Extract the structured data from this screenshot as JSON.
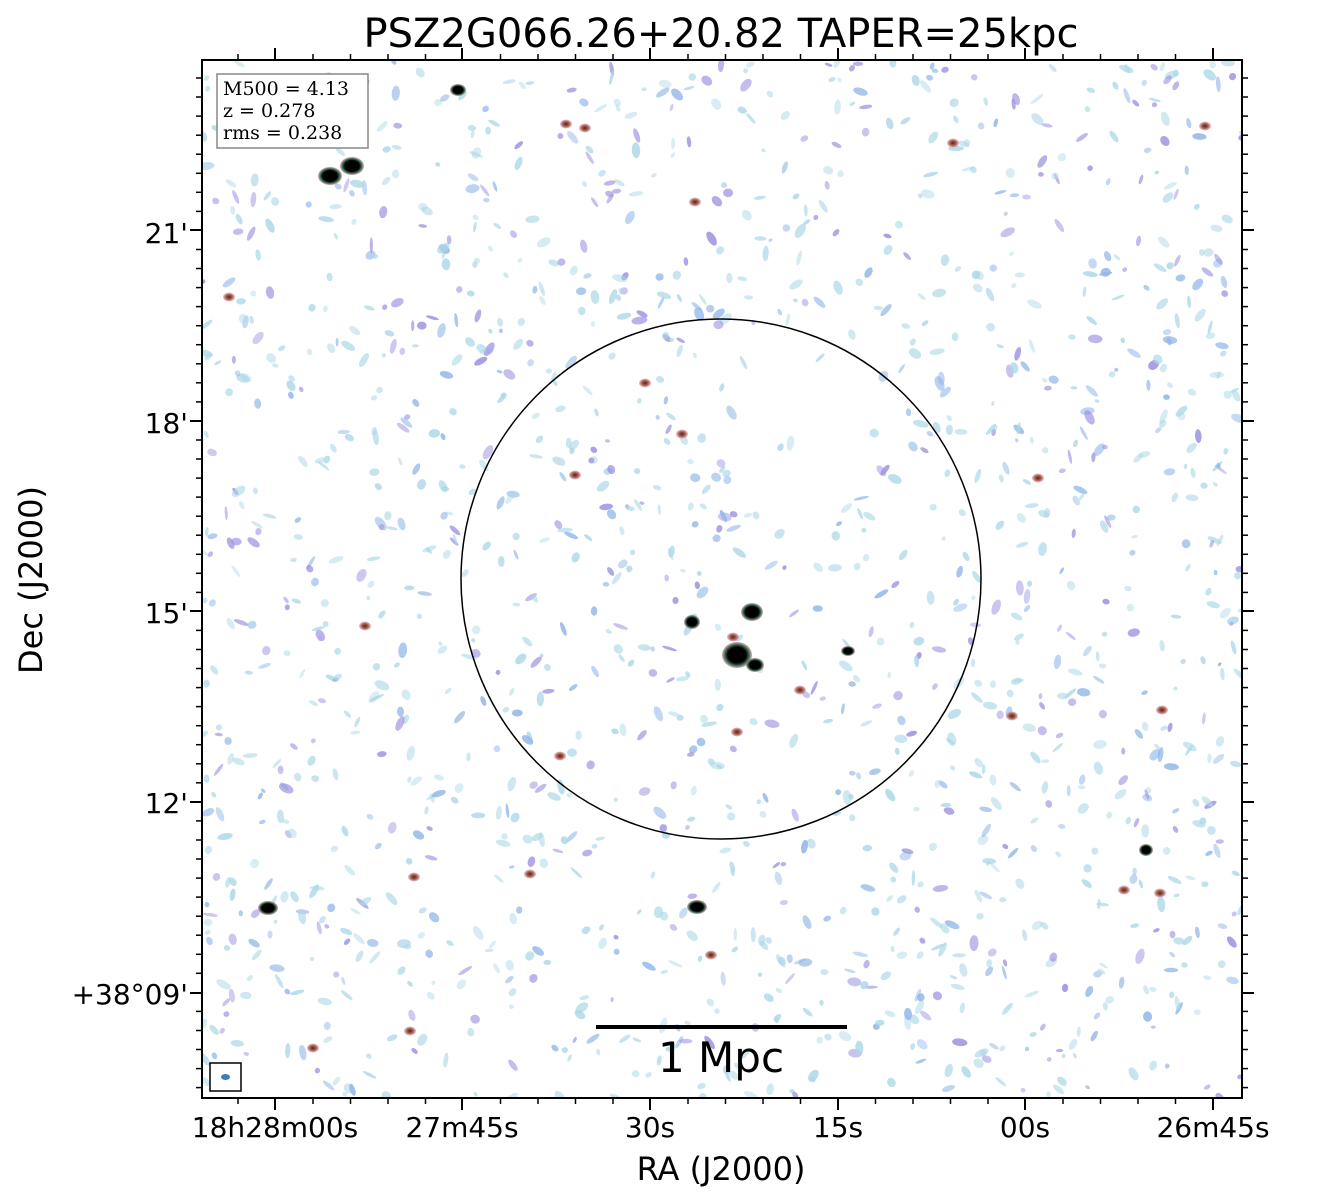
{
  "figure": {
    "title": "PSZ2G066.26+20.82 TAPER=25kpc",
    "xlabel": "RA (J2000)",
    "ylabel": "Dec (J2000)",
    "x_ticks": [
      "18h28m00s",
      "27m45s",
      "30s",
      "15s",
      "00s",
      "26m45s"
    ],
    "y_ticks": [
      "21'",
      "18'",
      "15'",
      "12'",
      "+38°09'"
    ],
    "info": {
      "m500": "M500 = 4.13",
      "z": "z = 0.278",
      "rms": "rms = 0.238"
    },
    "scale_bar": {
      "label": "1 Mpc"
    },
    "colors": {
      "noise_light": "#add8e6",
      "noise_mid": "#8fb5e8",
      "noise_violet": "#9b8fe0",
      "source_red": "#b05050",
      "source_core": "#000000",
      "source_halo": "#2e8b57"
    }
  }
}
